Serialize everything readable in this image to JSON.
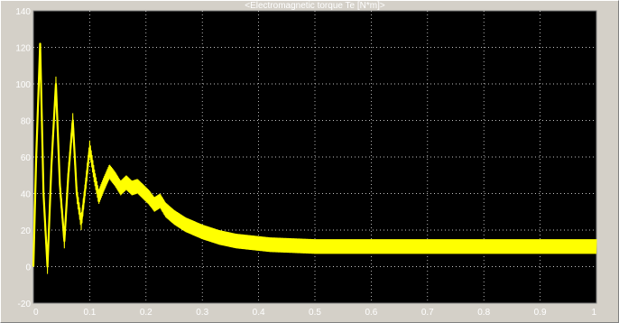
{
  "window": {
    "background": "#d4d0c8"
  },
  "chart_data": {
    "type": "line",
    "title": "<Electromagnetic torque Te [N*m]>",
    "xlabel": "",
    "ylabel": "",
    "xlim": [
      0,
      1
    ],
    "ylim": [
      -20,
      140
    ],
    "x_ticks": [
      "0",
      "0.1",
      "0.2",
      "0.3",
      "0.4",
      "0.5",
      "0.6",
      "0.7",
      "0.8",
      "0.9",
      "1"
    ],
    "y_ticks": [
      "-20",
      "0",
      "20",
      "40",
      "60",
      "80",
      "100",
      "120",
      "140"
    ],
    "grid": true,
    "background_color": "#000000",
    "grid_color": "#ffffff",
    "line_color": "#ffff00",
    "series": [
      {
        "x": [
          0,
          0.005,
          0.012,
          0.018,
          0.025,
          0.032,
          0.04,
          0.047,
          0.055,
          0.062,
          0.07,
          0.077,
          0.085,
          0.093,
          0.1,
          0.108,
          0.116,
          0.125,
          0.135,
          0.145,
          0.155,
          0.165,
          0.175,
          0.185,
          0.195,
          0.205,
          0.215,
          0.225,
          0.235,
          0.25,
          0.27,
          0.3,
          0.33,
          0.36,
          0.39,
          0.42,
          0.46,
          0.5,
          0.6,
          0.7,
          0.8,
          0.9,
          1.0
        ],
        "values": [
          0,
          60,
          122,
          40,
          0,
          55,
          100,
          45,
          14,
          50,
          80,
          40,
          24,
          45,
          65,
          50,
          38,
          45,
          52,
          48,
          43,
          46,
          43,
          44,
          41,
          38,
          34,
          36,
          31,
          27,
          23,
          19,
          16,
          14,
          13,
          12,
          11.5,
          11,
          11,
          11,
          11,
          11,
          11
        ],
        "ripple": 4
      }
    ]
  }
}
